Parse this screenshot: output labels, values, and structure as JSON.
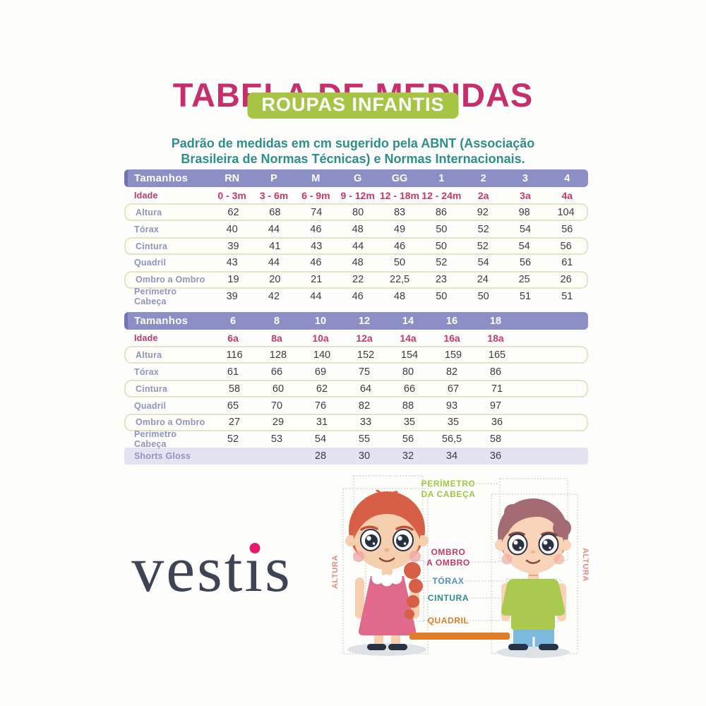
{
  "header": {
    "title": "TABELA DE MEDIDAS",
    "badge": "ROUPAS INFANTIS",
    "description": "Padrão de medidas em cm sugerido pela ABNT (Associação Brasileira de Normas Técnicas) e Normas Internacionais."
  },
  "colors": {
    "title": "#c62f6b",
    "badge": "#a6c545",
    "teal": "#2e8e8c",
    "header": "#8c8fc6",
    "header_dark": "#6f73b2",
    "row_label": "#9094c1",
    "idade": "#c23a6c",
    "row_border": "#e4e4c8",
    "highlight_row": "#e3e3f1",
    "logo": "#3e4454",
    "logo_dot": "#e6196e",
    "blue": "#4a90c4",
    "orange": "#e07b28",
    "salmon": "#e18d80"
  },
  "tables": [
    {
      "header_label": "Tamanhos",
      "columns": [
        "RN",
        "P",
        "M",
        "G",
        "GG",
        "1",
        "2",
        "3",
        "4"
      ],
      "rows": [
        {
          "label": "Idade",
          "variant": "idade",
          "cells": [
            "0 - 3m",
            "3 - 6m",
            "6 - 9m",
            "9 - 12m",
            "12 - 18m",
            "12 - 24m",
            "2a",
            "3a",
            "4a"
          ]
        },
        {
          "label": "Altura",
          "variant": "bordered",
          "cells": [
            "62",
            "68",
            "74",
            "80",
            "83",
            "86",
            "92",
            "98",
            "104"
          ]
        },
        {
          "label": "Tórax",
          "variant": "plain",
          "cells": [
            "40",
            "44",
            "46",
            "48",
            "49",
            "50",
            "52",
            "54",
            "56"
          ]
        },
        {
          "label": "Cintura",
          "variant": "bordered",
          "cells": [
            "39",
            "41",
            "43",
            "44",
            "46",
            "50",
            "52",
            "54",
            "56"
          ]
        },
        {
          "label": "Quadril",
          "variant": "plain",
          "cells": [
            "43",
            "44",
            "46",
            "48",
            "50",
            "52",
            "54",
            "56",
            "61"
          ]
        },
        {
          "label": "Ombro a Ombro",
          "variant": "bordered",
          "cells": [
            "19",
            "20",
            "21",
            "22",
            "22,5",
            "23",
            "24",
            "25",
            "26"
          ]
        },
        {
          "label": "Perimetro Cabeça",
          "variant": "plain",
          "cells": [
            "39",
            "42",
            "44",
            "46",
            "48",
            "50",
            "50",
            "51",
            "51"
          ]
        }
      ]
    },
    {
      "header_label": "Tamanhos",
      "columns": [
        "6",
        "8",
        "10",
        "12",
        "14",
        "16",
        "18"
      ],
      "rows": [
        {
          "label": "Idade",
          "variant": "idade",
          "cells": [
            "6a",
            "8a",
            "10a",
            "12a",
            "14a",
            "16a",
            "18a"
          ]
        },
        {
          "label": "Altura",
          "variant": "bordered",
          "cells": [
            "116",
            "128",
            "140",
            "152",
            "154",
            "159",
            "165"
          ]
        },
        {
          "label": "Tórax",
          "variant": "plain",
          "cells": [
            "61",
            "66",
            "69",
            "75",
            "80",
            "82",
            "86"
          ]
        },
        {
          "label": "Cintura",
          "variant": "bordered",
          "cells": [
            "58",
            "60",
            "62",
            "64",
            "66",
            "67",
            "71"
          ]
        },
        {
          "label": "Quadril",
          "variant": "plain",
          "cells": [
            "65",
            "70",
            "76",
            "82",
            "88",
            "93",
            "97"
          ]
        },
        {
          "label": "Ombro a Ombro",
          "variant": "bordered",
          "cells": [
            "27",
            "29",
            "31",
            "33",
            "35",
            "35",
            "36"
          ]
        },
        {
          "label": "Perimetro Cabeça",
          "variant": "plain",
          "cells": [
            "52",
            "53",
            "54",
            "55",
            "56",
            "56,5",
            "58"
          ]
        },
        {
          "label": "Shorts Gloss",
          "variant": "highlight",
          "cells": [
            "",
            "",
            "28",
            "30",
            "32",
            "34",
            "36"
          ]
        }
      ]
    }
  ],
  "footer": {
    "brand": "vestis",
    "measure_labels": {
      "head_1": "PERÍMETRO",
      "head_2": "DA CABEÇA",
      "shoulder_1": "OMBRO",
      "shoulder_2": "A OMBRO",
      "torax": "TÓRAX",
      "cintura": "CINTURA",
      "quadril": "QUADRIL",
      "altura": "ALTURA"
    }
  }
}
